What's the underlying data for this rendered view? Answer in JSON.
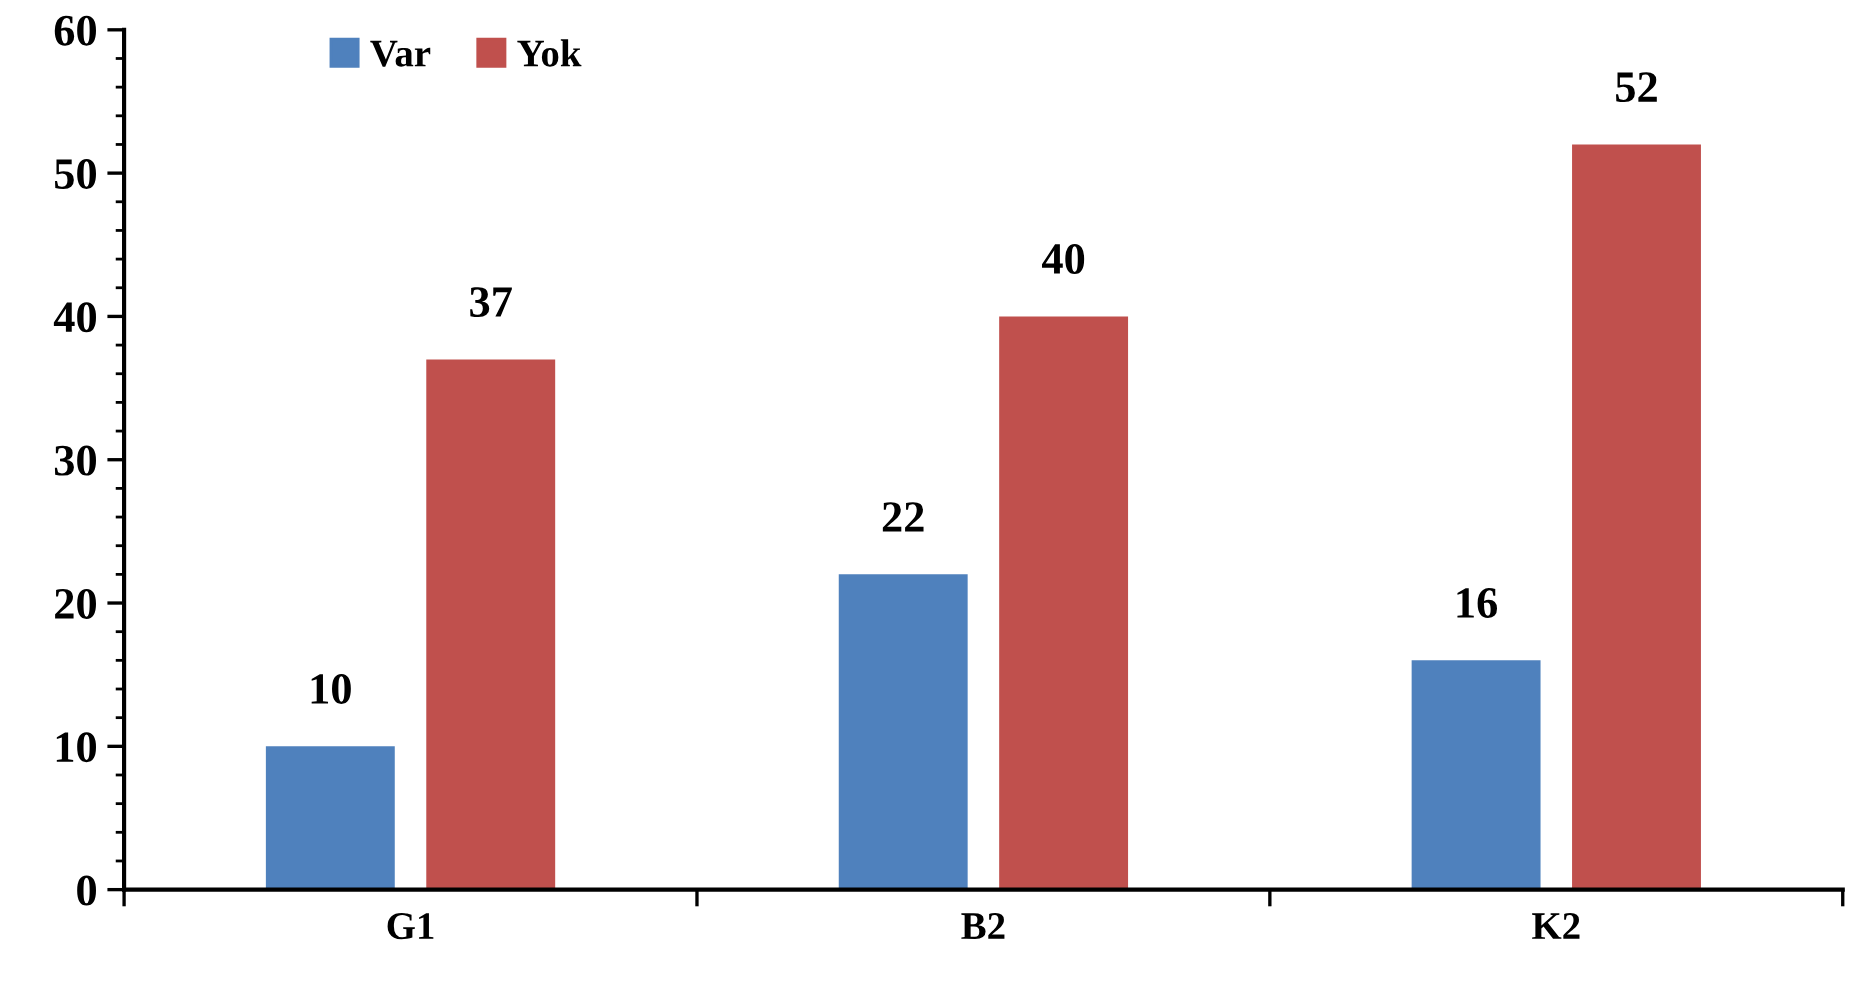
{
  "chart_data": {
    "type": "bar",
    "categories": [
      "G1",
      "B2",
      "K2"
    ],
    "series": [
      {
        "name": "Var",
        "color": "#4f81bd",
        "values": [
          10,
          22,
          16
        ]
      },
      {
        "name": "Yok",
        "color": "#c0504d",
        "values": [
          37,
          40,
          52
        ]
      }
    ],
    "ylim": [
      0,
      60
    ],
    "yticks": [
      0,
      10,
      20,
      30,
      40,
      50,
      60
    ],
    "grid": false,
    "legend": "top left",
    "data_labels": true
  }
}
